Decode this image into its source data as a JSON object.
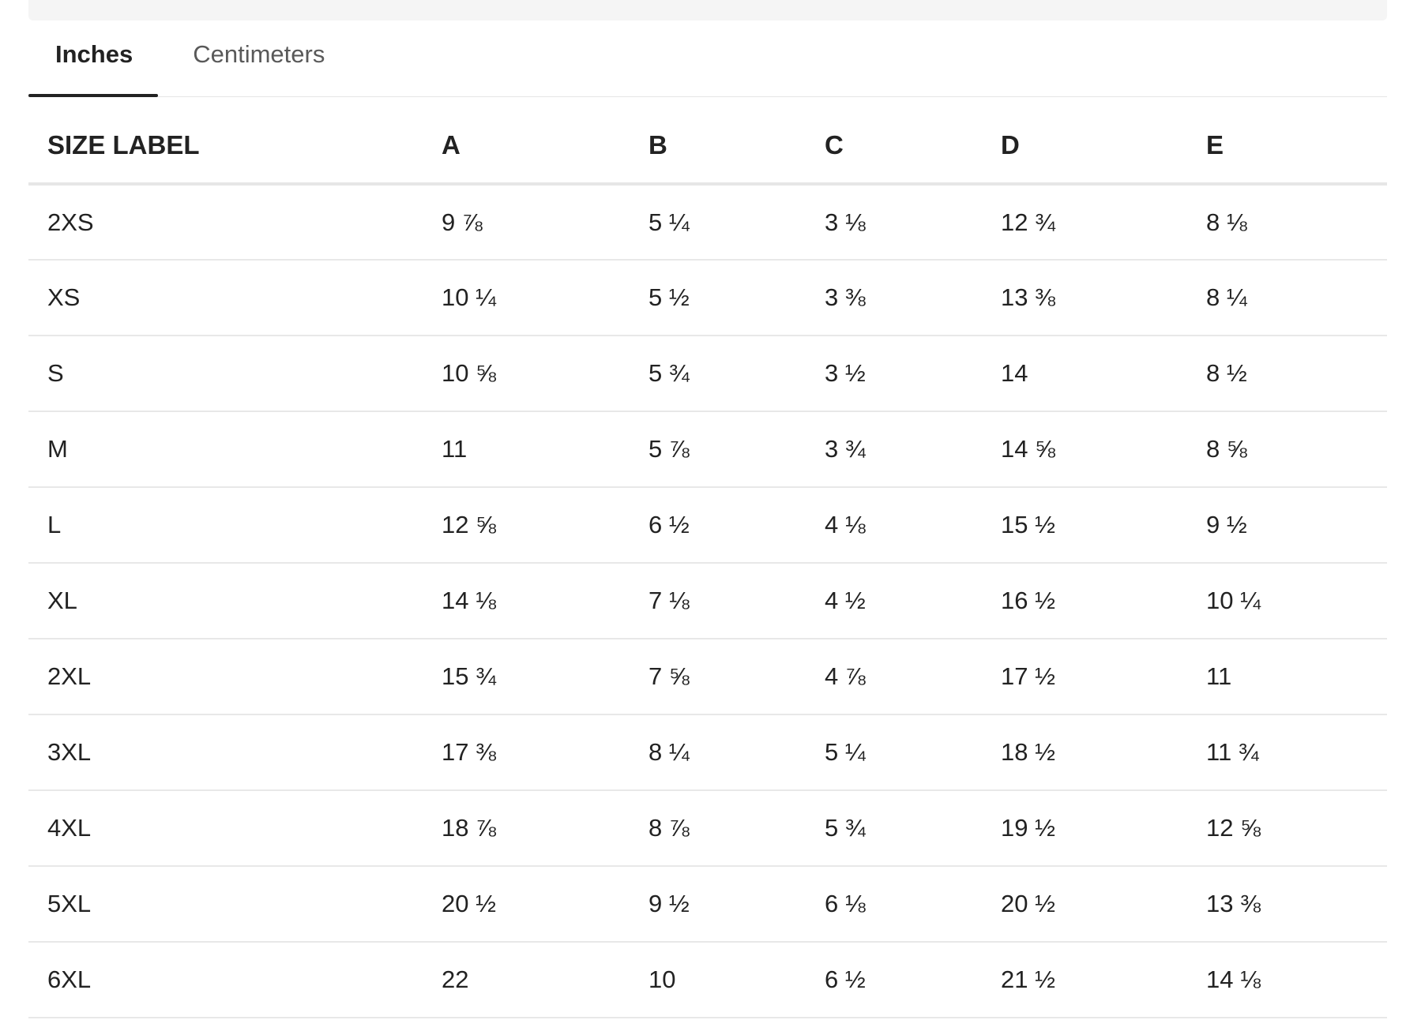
{
  "tabs": [
    {
      "label": "Inches",
      "active": true
    },
    {
      "label": "Centimeters",
      "active": false
    }
  ],
  "table": {
    "headers": [
      "SIZE LABEL",
      "A",
      "B",
      "C",
      "D",
      "E"
    ],
    "rows": [
      [
        "2XS",
        "9 ⅞",
        "5 ¼",
        "3 ⅛",
        "12 ¾",
        "8 ⅛"
      ],
      [
        "XS",
        "10 ¼",
        "5 ½",
        "3 ⅜",
        "13 ⅜",
        "8 ¼"
      ],
      [
        "S",
        "10 ⅝",
        "5 ¾",
        "3 ½",
        "14",
        "8 ½"
      ],
      [
        "M",
        "11",
        "5 ⅞",
        "3 ¾",
        "14 ⅝",
        "8 ⅝"
      ],
      [
        "L",
        "12 ⅝",
        "6 ½",
        "4 ⅛",
        "15 ½",
        "9 ½"
      ],
      [
        "XL",
        "14 ⅛",
        "7 ⅛",
        "4 ½",
        "16 ½",
        "10 ¼"
      ],
      [
        "2XL",
        "15 ¾",
        "7 ⅝",
        "4 ⅞",
        "17 ½",
        "11"
      ],
      [
        "3XL",
        "17 ⅜",
        "8 ¼",
        "5 ¼",
        "18 ½",
        "11 ¾"
      ],
      [
        "4XL",
        "18 ⅞",
        "8 ⅞",
        "5 ¾",
        "19 ½",
        "12 ⅝"
      ],
      [
        "5XL",
        "20 ½",
        "9 ½",
        "6 ⅛",
        "20 ½",
        "13 ⅜"
      ],
      [
        "6XL",
        "22",
        "10",
        "6 ½",
        "21 ½",
        "14 ⅛"
      ]
    ]
  },
  "colors": {
    "text": "#222222",
    "inactive_tab": "#595959",
    "divider": "#e8e8e8",
    "top_strip": "#f5f5f5"
  }
}
